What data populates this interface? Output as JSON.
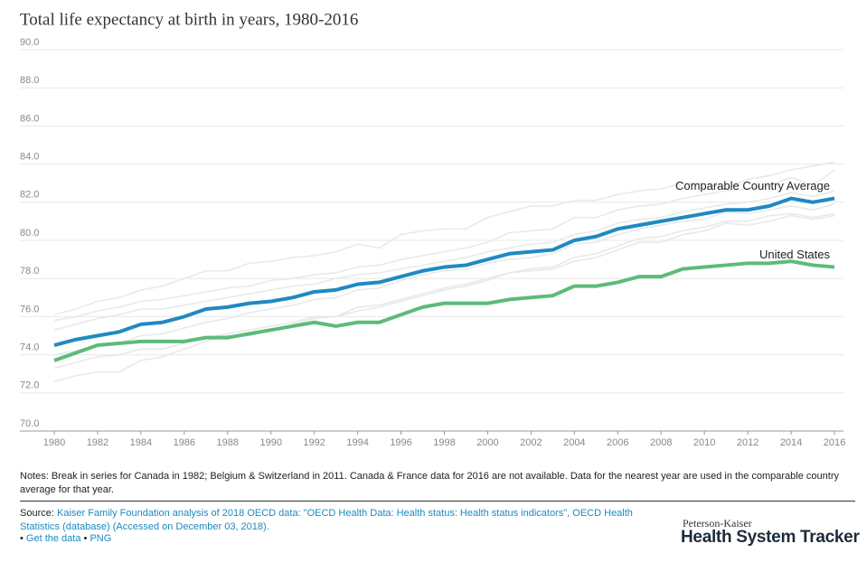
{
  "chart_data": {
    "type": "line",
    "title": "Total life expectancy at birth in years, 1980-2016",
    "x": [
      1980,
      1981,
      1982,
      1983,
      1984,
      1985,
      1986,
      1987,
      1988,
      1989,
      1990,
      1991,
      1992,
      1993,
      1994,
      1995,
      1996,
      1997,
      1998,
      1999,
      2000,
      2001,
      2002,
      2003,
      2004,
      2005,
      2006,
      2007,
      2008,
      2009,
      2010,
      2011,
      2012,
      2013,
      2014,
      2015,
      2016
    ],
    "xlim": [
      1980,
      2016
    ],
    "xticks": [
      1980,
      1982,
      1984,
      1986,
      1988,
      1990,
      1992,
      1994,
      1996,
      1998,
      2000,
      2002,
      2004,
      2006,
      2008,
      2010,
      2012,
      2014,
      2016
    ],
    "ylim": [
      70,
      90
    ],
    "yticks": [
      {
        "value": 70,
        "label": "70.0"
      },
      {
        "value": 72,
        "label": "72.0"
      },
      {
        "value": 74,
        "label": "74.0"
      },
      {
        "value": 76,
        "label": "76.0"
      },
      {
        "value": 78,
        "label": "78.0"
      },
      {
        "value": 80,
        "label": "80.0"
      },
      {
        "value": 82,
        "label": "82.0"
      },
      {
        "value": 84,
        "label": "84.0"
      },
      {
        "value": 86,
        "label": "86.0"
      },
      {
        "value": 88,
        "label": "88.0"
      },
      {
        "value": 90,
        "label": "90.0"
      }
    ],
    "grid": true,
    "series": [
      {
        "color": "#e6e8ea",
        "values": [
          76.1,
          76.4,
          76.8,
          77.0,
          77.4,
          77.6,
          78.0,
          78.4,
          78.4,
          78.8,
          78.9,
          79.1,
          79.2,
          79.4,
          79.8,
          79.6,
          80.3,
          80.5,
          80.6,
          80.6,
          81.2,
          81.5,
          81.8,
          81.8,
          82.1,
          82.1,
          82.4,
          82.6,
          82.7,
          83.0,
          83.0,
          82.7,
          83.2,
          83.4,
          83.7,
          83.9,
          84.1
        ]
      },
      {
        "color": "#e6e8ea",
        "values": [
          75.8,
          76.0,
          76.3,
          76.5,
          76.8,
          76.9,
          77.1,
          77.3,
          77.5,
          77.6,
          77.9,
          78.0,
          78.2,
          78.3,
          78.6,
          78.7,
          79.0,
          79.2,
          79.4,
          79.6,
          79.9,
          80.4,
          80.5,
          80.6,
          81.2,
          81.2,
          81.6,
          81.8,
          81.9,
          82.2,
          82.4,
          82.6,
          82.7,
          82.9,
          83.3,
          82.9,
          83.7
        ]
      },
      {
        "color": "#e6e8ea",
        "values": [
          75.3,
          75.6,
          75.9,
          76.1,
          76.4,
          76.4,
          76.6,
          76.8,
          77.0,
          77.2,
          77.4,
          77.6,
          77.7,
          78.0,
          78.2,
          78.3,
          78.5,
          78.7,
          78.9,
          79.1,
          79.4,
          79.6,
          79.8,
          79.9,
          80.3,
          80.5,
          80.9,
          81.1,
          81.2,
          81.5,
          81.7,
          81.9,
          82.0,
          82.2,
          82.5,
          82.3,
          82.6
        ]
      },
      {
        "color": "#e6e8ea",
        "values": [
          74.0,
          74.2,
          74.5,
          74.6,
          75.0,
          75.1,
          75.4,
          75.7,
          75.9,
          76.2,
          76.4,
          76.6,
          76.9,
          77.0,
          77.4,
          77.5,
          77.9,
          78.2,
          78.4,
          78.5,
          78.8,
          79.0,
          79.1,
          79.3,
          79.8,
          79.9,
          80.3,
          80.6,
          80.8,
          81.0,
          81.1,
          81.5,
          81.4,
          81.6,
          81.8,
          81.6,
          81.9
        ]
      },
      {
        "color": "#e6e8ea",
        "values": [
          73.3,
          73.6,
          73.9,
          74.0,
          74.3,
          74.3,
          74.6,
          74.9,
          75.1,
          75.3,
          75.5,
          75.7,
          76.0,
          76.0,
          76.3,
          76.5,
          76.8,
          77.1,
          77.4,
          77.6,
          77.9,
          78.3,
          78.5,
          78.6,
          79.1,
          79.3,
          79.7,
          80.1,
          80.2,
          80.5,
          80.7,
          81.0,
          81.0,
          81.3,
          81.4,
          81.2,
          81.4
        ]
      },
      {
        "color": "#e6e8ea",
        "values": [
          72.6,
          72.9,
          73.1,
          73.1,
          73.7,
          73.9,
          74.3,
          74.7,
          75.0,
          75.0,
          75.3,
          75.6,
          75.9,
          76.0,
          76.5,
          76.6,
          76.9,
          77.2,
          77.5,
          77.7,
          78.0,
          78.3,
          78.4,
          78.5,
          78.9,
          79.1,
          79.5,
          79.9,
          79.9,
          80.3,
          80.5,
          80.9,
          80.8,
          81.0,
          81.3,
          81.1,
          81.3
        ]
      },
      {
        "name": "Comparable Country Average",
        "color": "#2089c2",
        "values": [
          74.5,
          74.8,
          75.0,
          75.2,
          75.6,
          75.7,
          76.0,
          76.4,
          76.5,
          76.7,
          76.8,
          77.0,
          77.3,
          77.4,
          77.7,
          77.8,
          78.1,
          78.4,
          78.6,
          78.7,
          79.0,
          79.3,
          79.4,
          79.5,
          80.0,
          80.2,
          80.6,
          80.8,
          81.0,
          81.2,
          81.4,
          81.6,
          81.6,
          81.8,
          82.2,
          82.0,
          82.2
        ]
      },
      {
        "name": "United States",
        "color": "#5dbb7a",
        "values": [
          73.7,
          74.1,
          74.5,
          74.6,
          74.7,
          74.7,
          74.7,
          74.9,
          74.9,
          75.1,
          75.3,
          75.5,
          75.7,
          75.5,
          75.7,
          75.7,
          76.1,
          76.5,
          76.7,
          76.7,
          76.7,
          76.9,
          77.0,
          77.1,
          77.6,
          77.6,
          77.8,
          78.1,
          78.1,
          78.5,
          78.6,
          78.7,
          78.8,
          78.8,
          78.9,
          78.7,
          78.6
        ]
      }
    ]
  },
  "notes": "Notes: Break in series for Canada in 1982; Belgium & Switzerland in 2011. Canada & France data for 2016 are not available. Data for the nearest year are used in the comparable country average for that year.",
  "source": {
    "prefix": "Source:",
    "text": "Kaiser Family Foundation analysis of 2018 OECD data: \"OECD Health Data: Health status: Health status indicators\", OECD Health Statistics (database) (Accessed on December 03, 2018)."
  },
  "links": [
    "Get the data",
    "PNG"
  ],
  "logo": {
    "top": "Peterson-Kaiser",
    "main": "Health System Tracker"
  }
}
